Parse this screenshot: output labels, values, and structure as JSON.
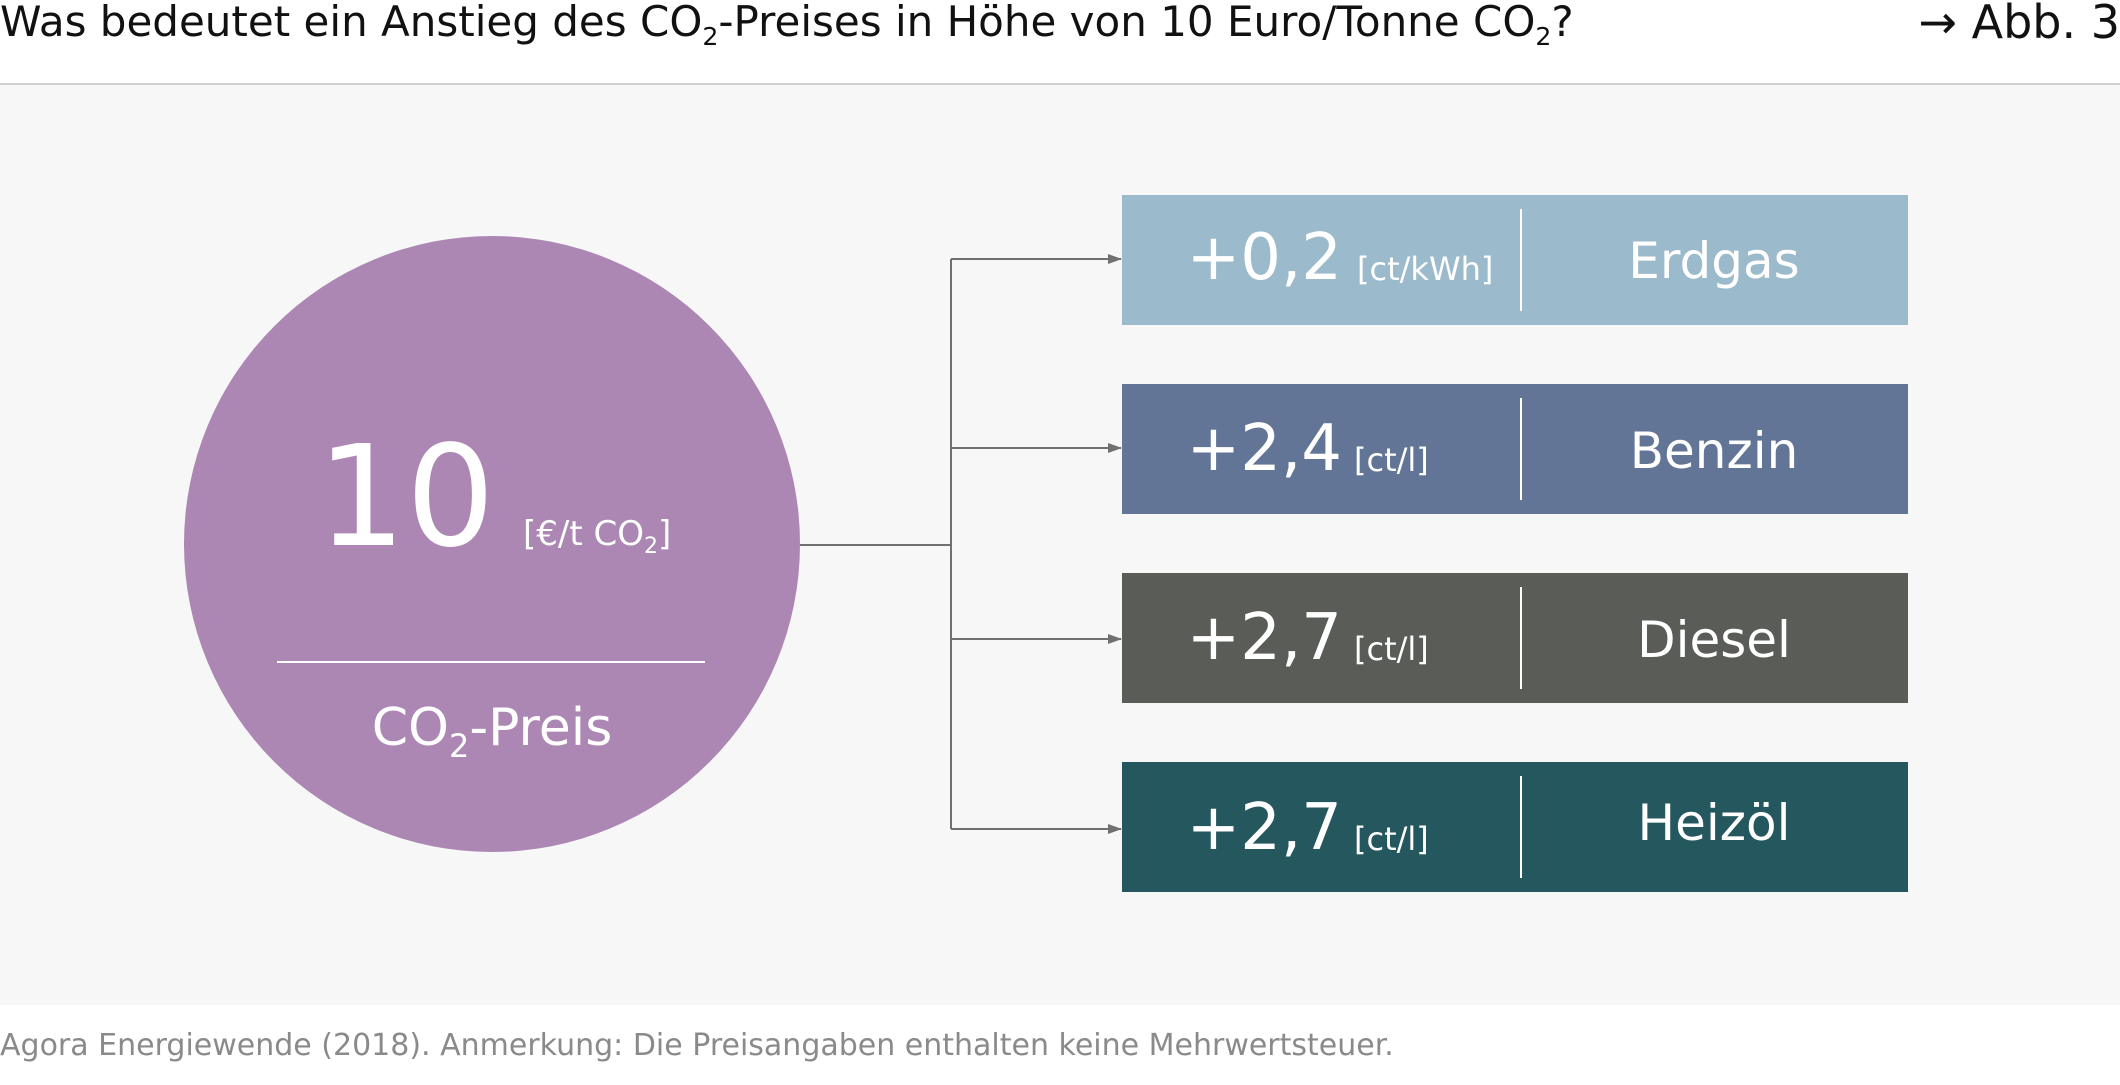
{
  "header": {
    "title_part1": "Was bedeutet ein Anstieg des CO",
    "title_sub1": "2",
    "title_part2": "-Preises in Höhe von 10 Euro/Tonne CO",
    "title_sub2": "2",
    "title_part3": "?",
    "figure_ref": "→ Abb. 3"
  },
  "source": {
    "text": "Agora Energiewende (2018). Anmerkung: Die Preisangaben enthalten keine Mehrwertsteuer."
  },
  "co2_price": {
    "value": "10",
    "unit_part1": "[€/t CO",
    "unit_sub": "2",
    "unit_part2": "]",
    "label_part1": "CO",
    "label_sub": "2",
    "label_part2": "-Preis",
    "color": "#ad87b4"
  },
  "connector_color": "#707070",
  "fuels": [
    {
      "value": "+0,2",
      "unit": "[ct/kWh]",
      "name": "Erdgas",
      "color": "#9bbacb"
    },
    {
      "value": "+2,4",
      "unit": "[ct/l]",
      "name": "Benzin",
      "color": "#627596"
    },
    {
      "value": "+2,7",
      "unit": "[ct/l]",
      "name": "Diesel",
      "color": "#5a5c57"
    },
    {
      "value": "+2,7",
      "unit": "[ct/l]",
      "name": "Heizöl",
      "color": "#25575f"
    }
  ]
}
